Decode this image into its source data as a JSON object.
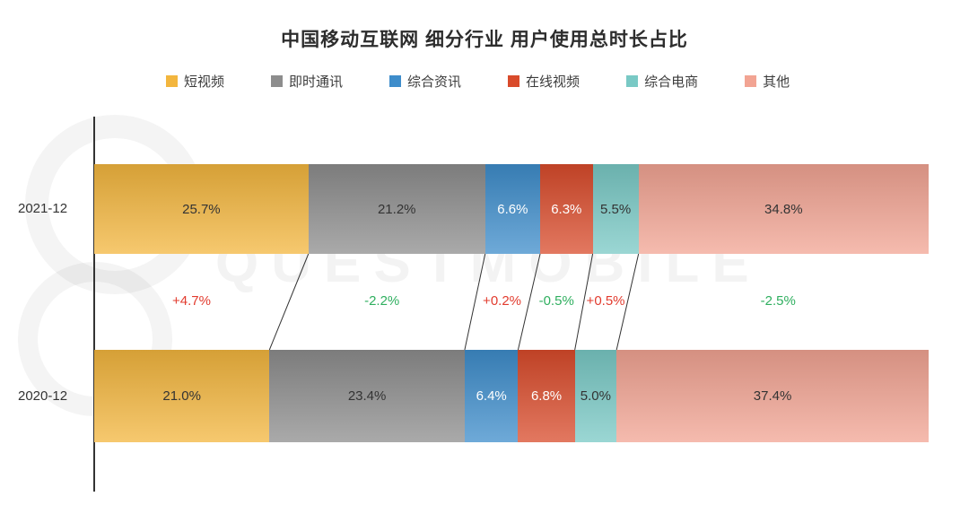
{
  "title": "中国移动互联网 细分行业 用户使用总时长占比",
  "watermark": "QUESTMOBILE",
  "chart_data": {
    "type": "bar",
    "variant": "horizontal-stacked",
    "unit": "%",
    "title": "中国移动互联网 细分行业 用户使用总时长占比",
    "legend_position": "top",
    "value_labels": true,
    "categories": [
      "2021-12",
      "2020-12"
    ],
    "series": [
      {
        "name": "短视频",
        "color": "#F3B63E",
        "label_color": "#333333",
        "values": [
          25.7,
          21.0
        ]
      },
      {
        "name": "即时通讯",
        "color": "#8D8D8D",
        "label_color": "#333333",
        "values": [
          21.2,
          23.4
        ]
      },
      {
        "name": "综合资讯",
        "color": "#3E8DCB",
        "label_color": "#FFFFFF",
        "values": [
          6.6,
          6.4
        ]
      },
      {
        "name": "在线视频",
        "color": "#D94B2B",
        "label_color": "#FFFFFF",
        "values": [
          6.3,
          6.8
        ]
      },
      {
        "name": "综合电商",
        "color": "#79C9C5",
        "label_color": "#333333",
        "values": [
          5.5,
          5.0
        ]
      },
      {
        "name": "其他",
        "color": "#F2A493",
        "label_color": "#333333",
        "values": [
          34.8,
          37.4
        ]
      }
    ],
    "deltas": [
      {
        "label": "+4.7%",
        "color": "#E23B2E"
      },
      {
        "label": "-2.2%",
        "color": "#2FAF5F"
      },
      {
        "label": "+0.2%",
        "color": "#E23B2E"
      },
      {
        "label": "-0.5%",
        "color": "#2FAF5F"
      },
      {
        "label": "+0.5%",
        "color": "#E23B2E"
      },
      {
        "label": "-2.5%",
        "color": "#2FAF5F"
      }
    ]
  }
}
